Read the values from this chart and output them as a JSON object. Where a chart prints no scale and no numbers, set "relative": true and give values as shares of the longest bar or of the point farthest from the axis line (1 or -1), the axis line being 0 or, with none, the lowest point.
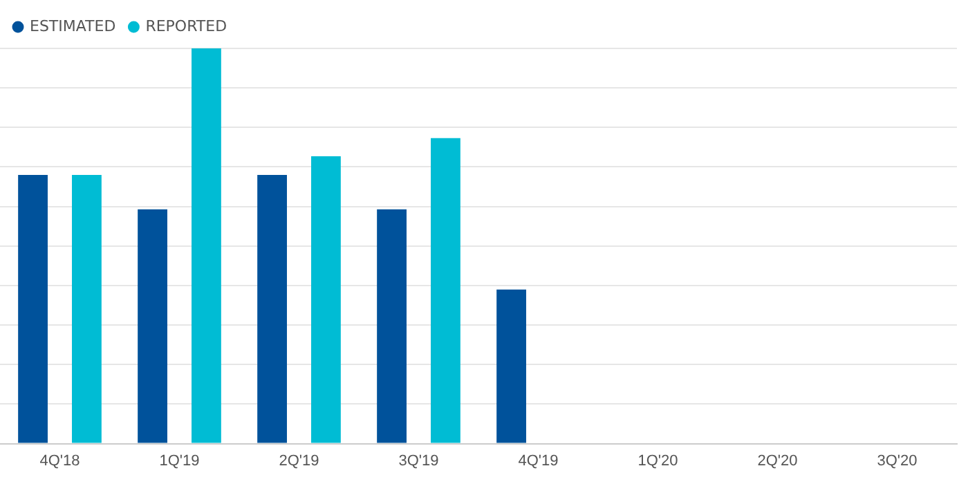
{
  "chart_data": {
    "type": "bar",
    "relative": true,
    "categories": [
      "4Q'18",
      "1Q'19",
      "2Q'19",
      "3Q'19",
      "4Q'19",
      "1Q'20",
      "2Q'20",
      "3Q'20"
    ],
    "series": [
      {
        "name": "ESTIMATED",
        "color": "#00529b",
        "values": [
          0.68,
          0.593,
          0.68,
          0.593,
          0.39,
          null,
          null,
          null
        ]
      },
      {
        "name": "REPORTED",
        "color": "#00bcd4",
        "values": [
          0.68,
          1,
          0.727,
          0.773,
          null,
          null,
          null,
          null
        ]
      }
    ],
    "grid": "y",
    "legend": "top left"
  }
}
